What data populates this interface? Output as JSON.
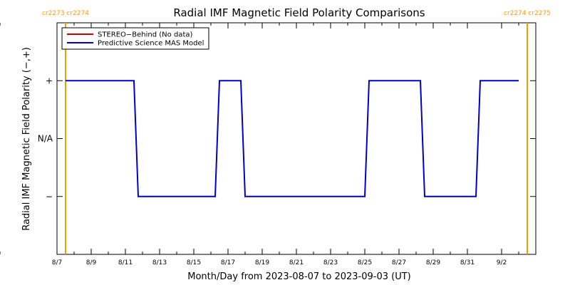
{
  "chart_data": {
    "type": "line",
    "title": "Radial IMF Magnetic Field Polarity Comparisons",
    "xlabel": "Month/Day from 2023-08-07 to 2023-09-03 (UT)",
    "ylabel": "Radial IMF Magnetic Field Polarity (−,+)",
    "x_domain": [
      "2023-08-07",
      "2023-09-03"
    ],
    "x_ticks": [
      "8/7",
      "8/9",
      "8/11",
      "8/13",
      "8/15",
      "8/17",
      "8/19",
      "8/21",
      "8/23",
      "8/25",
      "8/27",
      "8/29",
      "8/31",
      "9/2"
    ],
    "y_ticks": [
      {
        "value": 1,
        "label": "+"
      },
      {
        "value": 0,
        "label": "N/A"
      },
      {
        "value": -1,
        "label": "−"
      }
    ],
    "ylim": [
      -2,
      2
    ],
    "grid": false,
    "legend_position": "top-left",
    "carrington_markers": [
      {
        "date": "2023-08-07T12:00",
        "label": "cr2273 cr2274",
        "color": "#ff9900"
      },
      {
        "date": "2023-09-03T12:00",
        "label": "cr2274 cr2275",
        "color": "#ff9900"
      }
    ],
    "series": [
      {
        "name": "STEREO−Behind (No data)",
        "color": "#cc0000",
        "points": []
      },
      {
        "name": "Predictive Science MAS Model",
        "color": "#0000cc",
        "points": [
          [
            "2023-08-07T12:00",
            1
          ],
          [
            "2023-08-11T12:00",
            1
          ],
          [
            "2023-08-11T18:00",
            -1
          ],
          [
            "2023-08-16T06:00",
            -1
          ],
          [
            "2023-08-16T12:00",
            1
          ],
          [
            "2023-08-17T18:00",
            1
          ],
          [
            "2023-08-18T00:00",
            -1
          ],
          [
            "2023-08-25T00:00",
            -1
          ],
          [
            "2023-08-25T06:00",
            1
          ],
          [
            "2023-08-28T06:00",
            1
          ],
          [
            "2023-08-28T12:00",
            -1
          ],
          [
            "2023-08-31T12:00",
            -1
          ],
          [
            "2023-08-31T18:00",
            1
          ],
          [
            "2023-09-03T00:00",
            1
          ]
        ]
      }
    ]
  }
}
